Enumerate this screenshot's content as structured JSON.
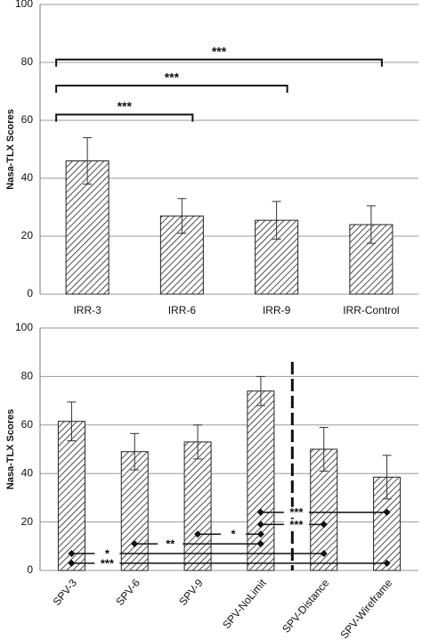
{
  "chart_data": [
    {
      "type": "bar",
      "ylabel": "Nasa-TLX Scores",
      "categories": [
        "IRR-3",
        "IRR-6",
        "IRR-9",
        "IRR-Control"
      ],
      "values": [
        46,
        27,
        25.5,
        24
      ],
      "errors": [
        8,
        6,
        6.5,
        6.5
      ],
      "ylim": [
        0,
        100
      ],
      "yticks": [
        0,
        20,
        40,
        60,
        80,
        100
      ],
      "grid": true,
      "comparisons": [
        {
          "from": "IRR-3",
          "to": "IRR-6",
          "label": "***",
          "y": 62
        },
        {
          "from": "IRR-3",
          "to": "IRR-9",
          "label": "***",
          "y": 72
        },
        {
          "from": "IRR-3",
          "to": "IRR-Control",
          "label": "***",
          "y": 81
        }
      ]
    },
    {
      "type": "bar",
      "ylabel": "Nasa-TLX Scores",
      "categories": [
        "SPV-3",
        "SPV-6",
        "SPV-9",
        "SPV-NoLimit",
        "SPV-Distance",
        "SPV-Wireframe"
      ],
      "values": [
        61.5,
        49,
        53,
        74,
        50,
        38.5
      ],
      "errors": [
        8,
        7.5,
        7,
        6,
        9,
        9
      ],
      "ylim": [
        0,
        100
      ],
      "yticks": [
        0,
        20,
        40,
        60,
        80,
        100
      ],
      "grid": true,
      "divider_after": "SPV-NoLimit",
      "comparisons": [
        {
          "from": "SPV-NoLimit",
          "to": "SPV-Wireframe",
          "label": "***",
          "y": 24
        },
        {
          "from": "SPV-NoLimit",
          "to": "SPV-Distance",
          "label": "***",
          "y": 19
        },
        {
          "from": "SPV-9",
          "to": "SPV-NoLimit",
          "label": "*",
          "y": 15
        },
        {
          "from": "SPV-6",
          "to": "SPV-NoLimit",
          "label": "**",
          "y": 11
        },
        {
          "from": "SPV-3",
          "to": "SPV-Distance",
          "label": "*",
          "y": 7
        },
        {
          "from": "SPV-3",
          "to": "SPV-Wireframe",
          "label": "***",
          "y": 3
        }
      ]
    }
  ]
}
